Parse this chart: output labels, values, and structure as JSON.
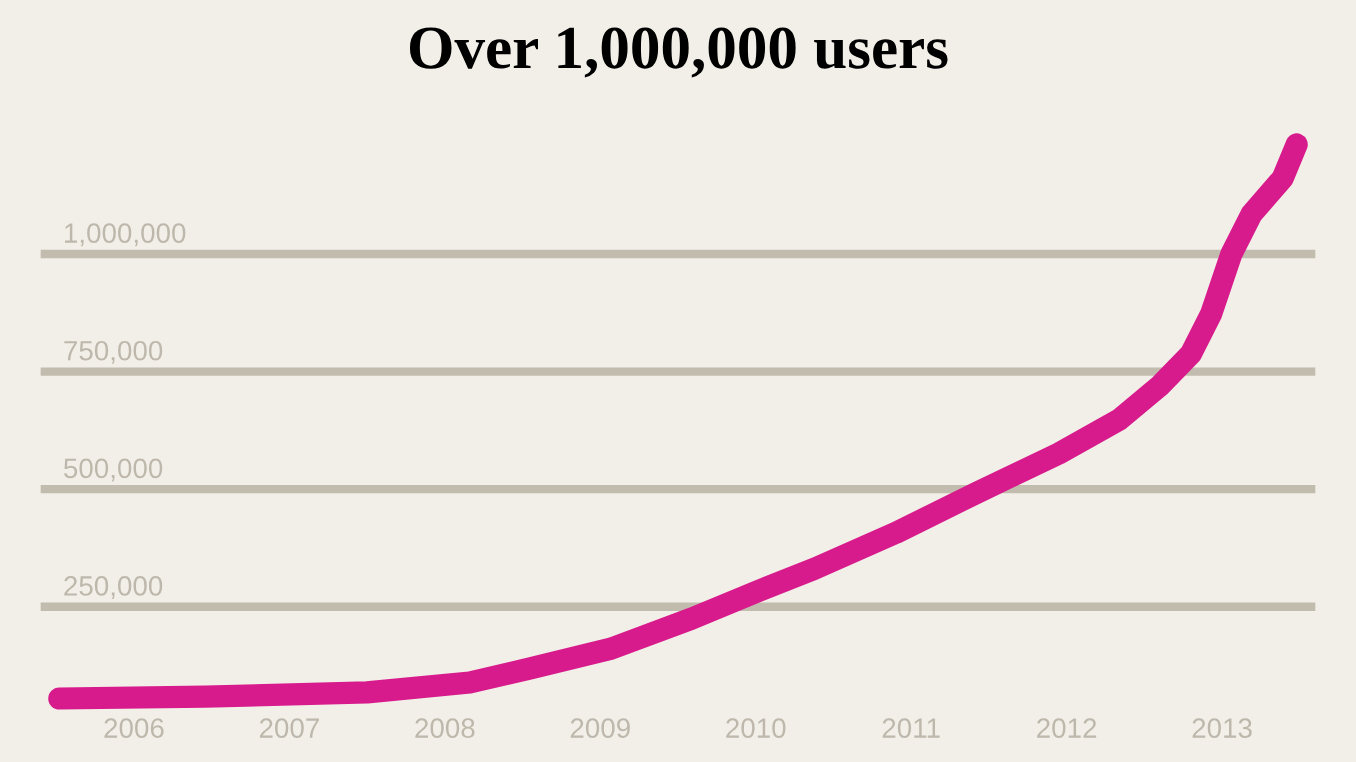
{
  "chart_data": {
    "type": "line",
    "title": "Over 1,000,000 users",
    "x": [
      2005.52,
      2006.46,
      2007.5,
      2008.16,
      2008.55,
      2009.07,
      2009.59,
      2009.99,
      2010.38,
      2010.9,
      2011.42,
      2011.95,
      2012.34,
      2012.6,
      2012.8,
      2012.93,
      2013.06,
      2013.19,
      2013.39,
      2013.48
    ],
    "series": [
      {
        "color": "#d81b8c",
        "values": [
          55000,
          59000,
          68000,
          89000,
          119000,
          161000,
          225000,
          280000,
          331000,
          407000,
          492000,
          576000,
          648000,
          720000,
          788000,
          873000,
          1000000,
          1085000,
          1161000,
          1233000
        ]
      }
    ],
    "xlim": [
      2005.4,
      2013.6
    ],
    "xticks": [
      2006,
      2007,
      2008,
      2009,
      2010,
      2011,
      2012,
      2013
    ],
    "ylim": [
      -80000,
      1540000
    ],
    "yticks": [
      {
        "value": 250000,
        "label": "250,000"
      },
      {
        "value": 500000,
        "label": "500,000"
      },
      {
        "value": 750000,
        "label": "750,000"
      },
      {
        "value": 1000000,
        "label": "1,000,000"
      }
    ],
    "grid": "y",
    "legend": false,
    "line_style": "solid"
  }
}
